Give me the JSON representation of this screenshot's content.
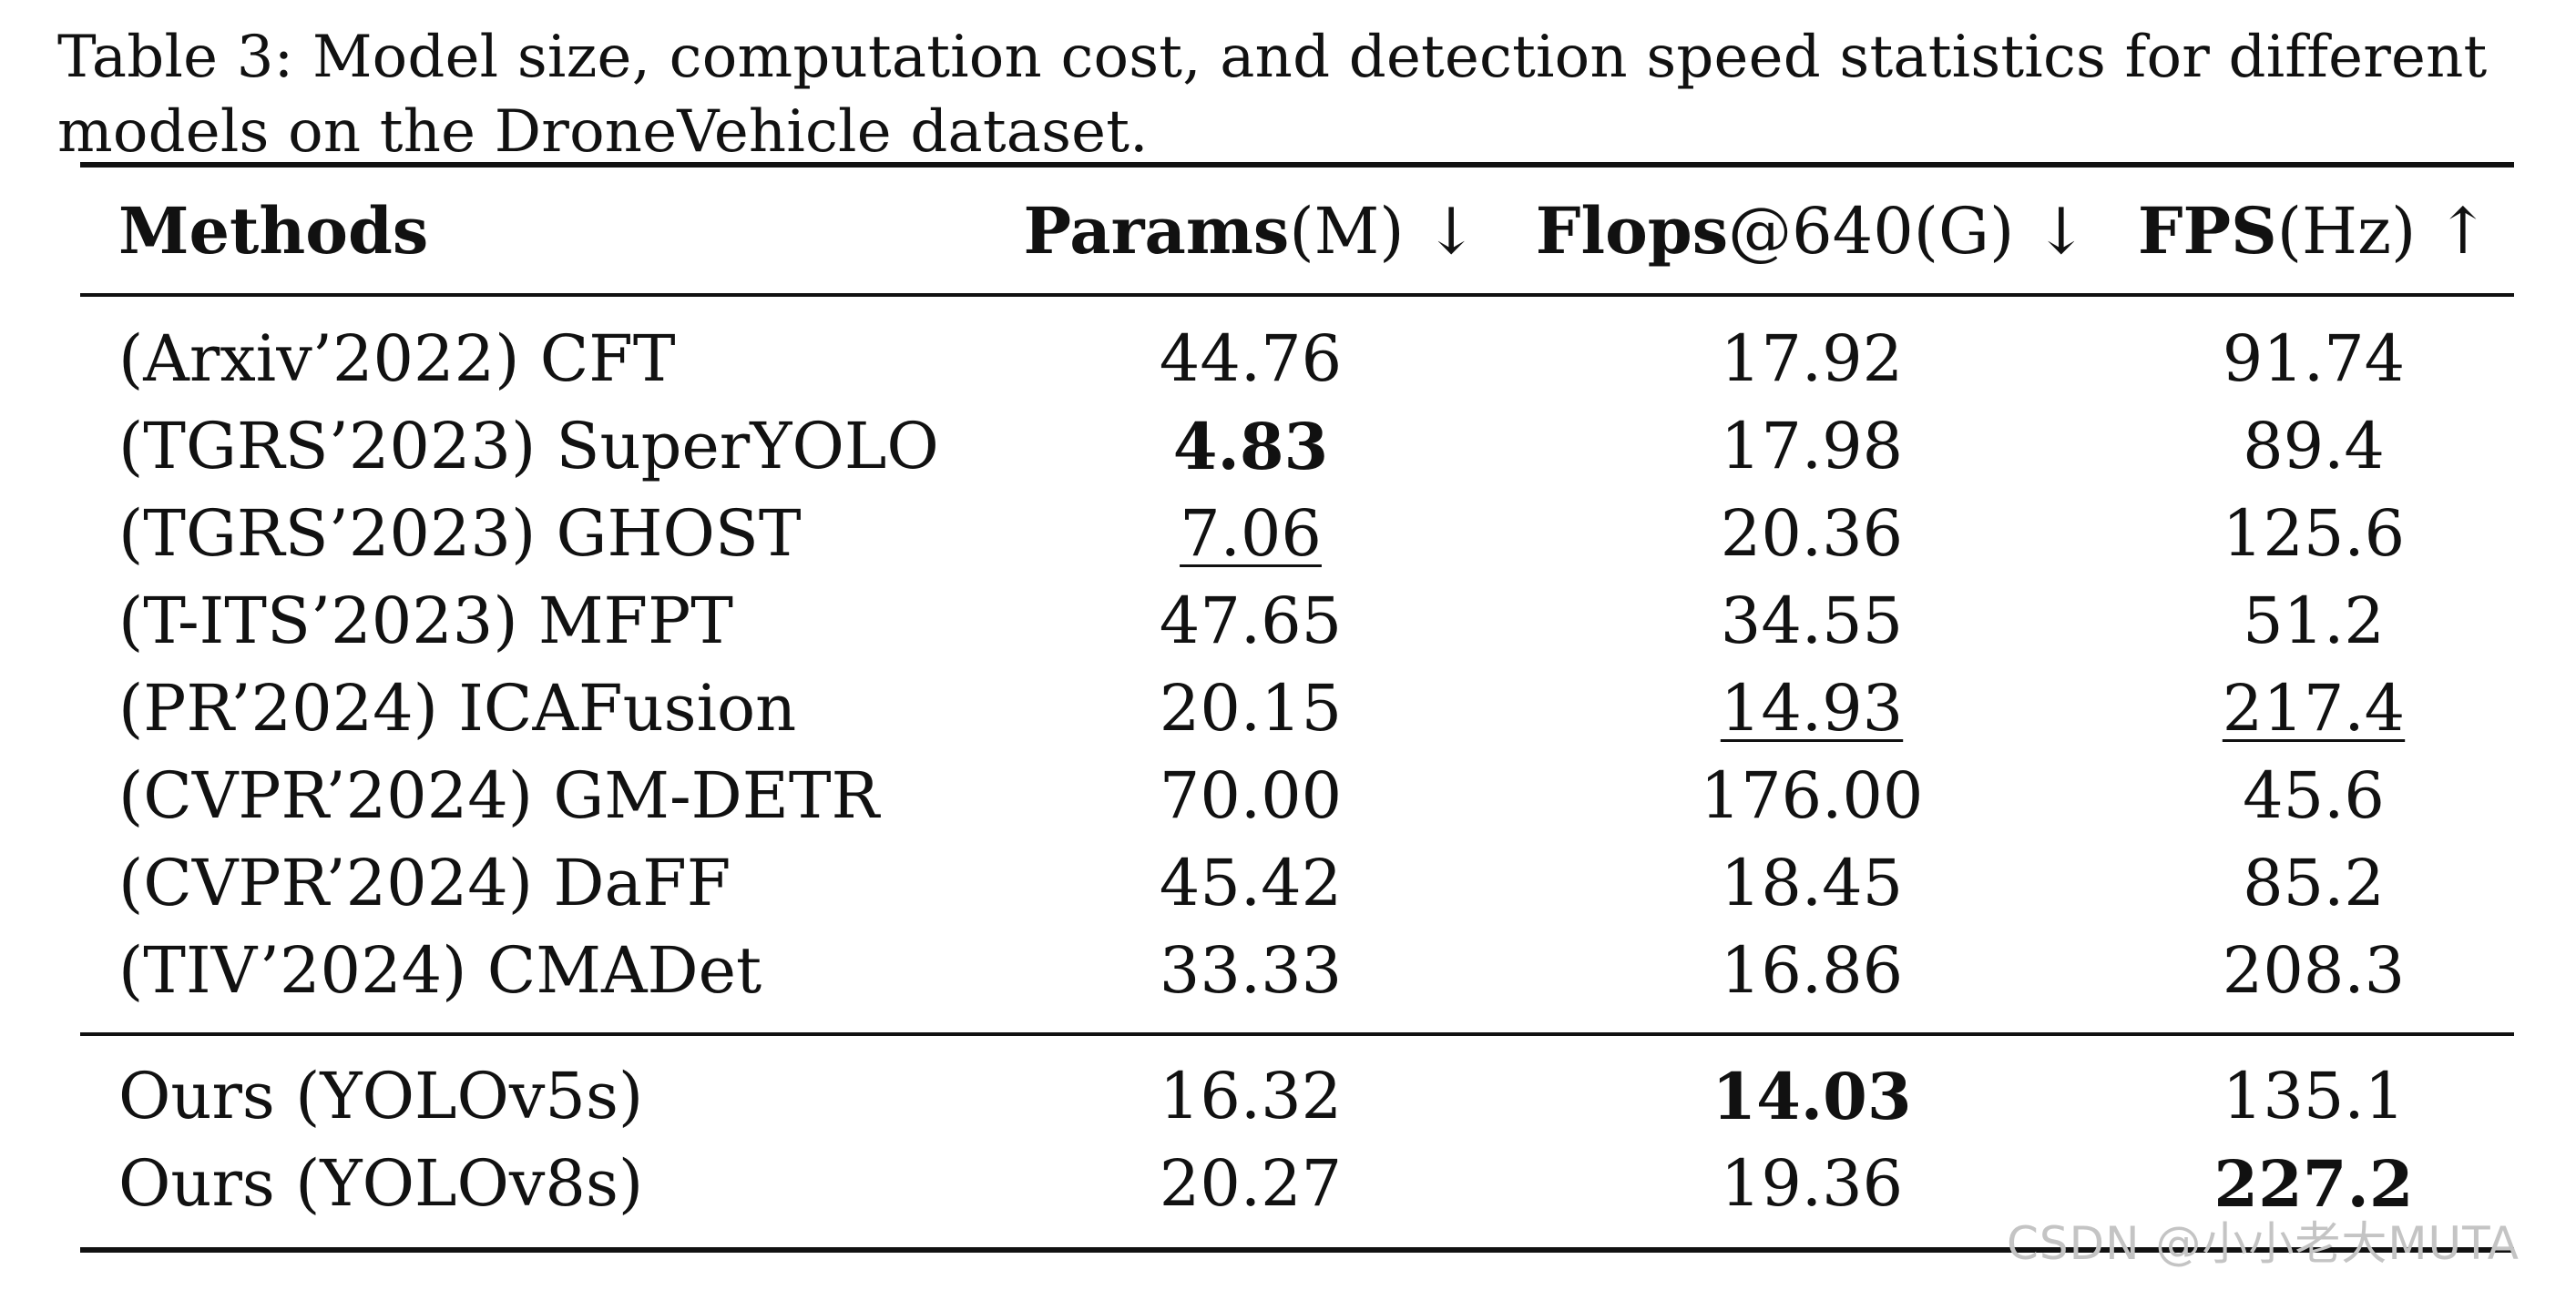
{
  "caption": "Table 3: Model size, computation cost, and detection speed statistics for different models on the DroneVehicle dataset.",
  "table": {
    "headers": [
      {
        "bold": "Methods",
        "rest": ""
      },
      {
        "bold": "Params",
        "rest": "(M) ↓"
      },
      {
        "bold": "Flops",
        "rest": "@640(G) ↓"
      },
      {
        "bold": "FPS",
        "rest": "(Hz) ↑"
      }
    ],
    "baseline_rows": [
      {
        "method": "(Arxiv’2022) CFT",
        "params": "44.76",
        "flops": "17.92",
        "fps": "91.74"
      },
      {
        "method": "(TGRS’2023) SuperYOLO",
        "params": "4.83",
        "flops": "17.98",
        "fps": "89.4"
      },
      {
        "method": "(TGRS’2023) GHOST",
        "params": "7.06",
        "flops": "20.36",
        "fps": "125.6"
      },
      {
        "method": "(T-ITS’2023) MFPT",
        "params": "47.65",
        "flops": "34.55",
        "fps": "51.2"
      },
      {
        "method": "(PR’2024) ICAFusion",
        "params": "20.15",
        "flops": "14.93",
        "fps": "217.4"
      },
      {
        "method": "(CVPR’2024) GM-DETR",
        "params": "70.00",
        "flops": "176.00",
        "fps": "45.6"
      },
      {
        "method": "(CVPR’2024) DaFF",
        "params": "45.42",
        "flops": "18.45",
        "fps": "85.2"
      },
      {
        "method": "(TIV’2024) CMADet",
        "params": "33.33",
        "flops": "16.86",
        "fps": "208.3"
      }
    ],
    "ours_rows": [
      {
        "method": "Ours (YOLOv5s)",
        "params": "16.32",
        "flops": "14.03",
        "fps": "135.1"
      },
      {
        "method": "Ours (YOLOv8s)",
        "params": "20.27",
        "flops": "19.36",
        "fps": "227.2"
      }
    ]
  },
  "watermark": "CSDN @小小老大MUTA"
}
